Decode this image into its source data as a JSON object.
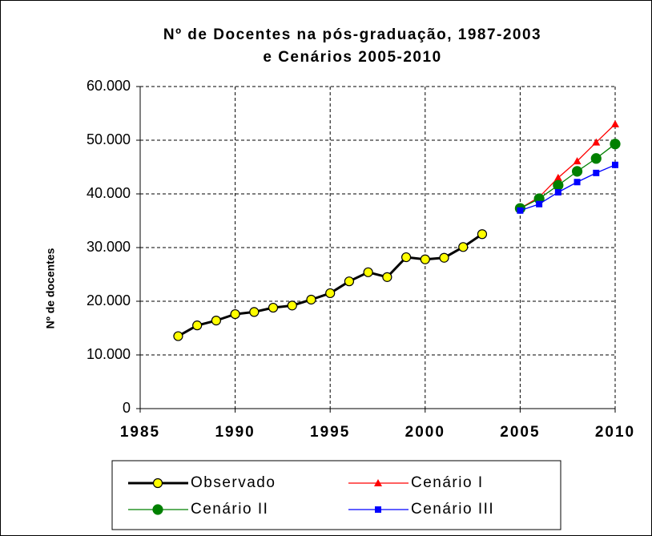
{
  "chart_data": {
    "type": "line",
    "title": [
      "Nº de Docentes na pós-graduação, 1987-2003",
      "e Cenários 2005-2010"
    ],
    "ylabel": "Nº de docentes",
    "xlim": [
      1985,
      2010
    ],
    "xticks": [
      1985,
      1990,
      1995,
      2000,
      2005,
      2010
    ],
    "ylim": [
      0,
      60000
    ],
    "yticks": [
      0,
      {
        "value": 10000,
        "label": "10.000"
      },
      {
        "value": 20000,
        "label": "20.000"
      },
      {
        "value": 30000,
        "label": "30.000"
      },
      {
        "value": 40000,
        "label": "40.000"
      },
      {
        "value": 50000,
        "label": "50.000"
      },
      {
        "value": 60000,
        "label": "60.000"
      }
    ],
    "grid": true,
    "legend": "bottom",
    "series": [
      {
        "name": "Observado",
        "color": "#000000",
        "marker": "circle",
        "marker_color": "#ffff00",
        "x": [
          1987,
          1988,
          1989,
          1990,
          1991,
          1992,
          1993,
          1994,
          1995,
          1996,
          1997,
          1998,
          1999,
          2000,
          2001,
          2002,
          2003
        ],
        "values": [
          13500,
          15500,
          16400,
          17600,
          18000,
          18800,
          19200,
          20300,
          21500,
          23700,
          25400,
          24500,
          28200,
          27800,
          28100,
          30100,
          32500
        ]
      },
      {
        "name": "Cenário I",
        "color": "#ff0000",
        "marker": "triangle",
        "marker_color": "#ff0000",
        "x": [
          2005,
          2006,
          2007,
          2008,
          2009,
          2010
        ],
        "values": [
          37300,
          39400,
          43000,
          46100,
          49600,
          53000
        ]
      },
      {
        "name": "Cenário II",
        "color": "#008000",
        "marker": "circle",
        "marker_color": "#008000",
        "x": [
          2005,
          2006,
          2007,
          2008,
          2009,
          2010
        ],
        "values": [
          37300,
          39100,
          41600,
          44200,
          46600,
          49300
        ]
      },
      {
        "name": "Cenário III",
        "color": "#0000ff",
        "marker": "square",
        "marker_color": "#0000ff",
        "x": [
          2005,
          2006,
          2007,
          2008,
          2009,
          2010
        ],
        "values": [
          36900,
          38100,
          40300,
          42200,
          43900,
          45400
        ]
      }
    ]
  }
}
